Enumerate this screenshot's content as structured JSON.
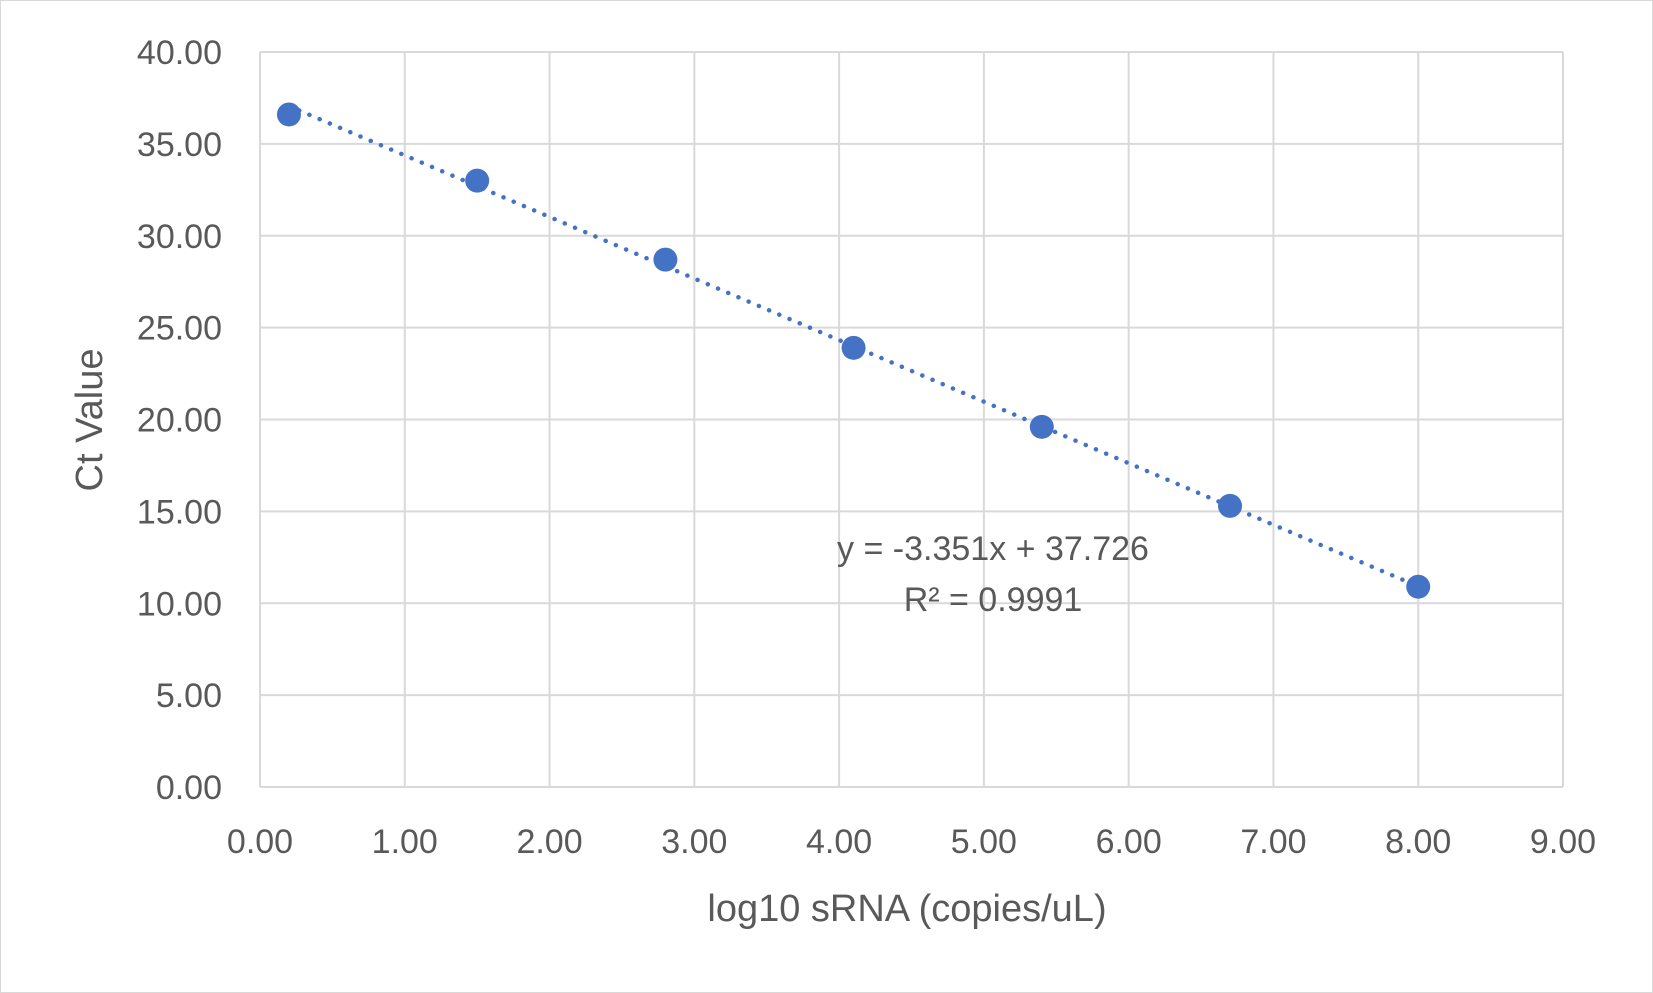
{
  "chart_data": {
    "type": "scatter",
    "x": [
      0.2,
      1.5,
      2.8,
      4.1,
      5.4,
      6.7,
      8.0
    ],
    "y": [
      36.6,
      33.0,
      28.7,
      23.9,
      19.6,
      15.3,
      10.9
    ],
    "xlabel": "log10 sRNA (copies/uL)",
    "ylabel": "Ct Value",
    "xlim": [
      0,
      9
    ],
    "ylim": [
      0,
      40
    ],
    "x_ticks": [
      "0.00",
      "1.00",
      "2.00",
      "3.00",
      "4.00",
      "5.00",
      "6.00",
      "7.00",
      "8.00",
      "9.00"
    ],
    "y_ticks": [
      "0.00",
      "5.00",
      "10.00",
      "15.00",
      "20.00",
      "25.00",
      "30.00",
      "35.00",
      "40.00"
    ],
    "grid": true,
    "trendline": {
      "type": "linear",
      "style": "dotted",
      "slope": -3.351,
      "intercept": 37.726,
      "x_range": [
        0.2,
        8.0
      ],
      "equation_label": "y = -3.351x + 37.726",
      "r2_label": "R² = 0.9991"
    },
    "colors": {
      "marker": "#4472C4",
      "trendline": "#4472C4",
      "grid": "#d9d9d9",
      "text": "#595959"
    }
  }
}
